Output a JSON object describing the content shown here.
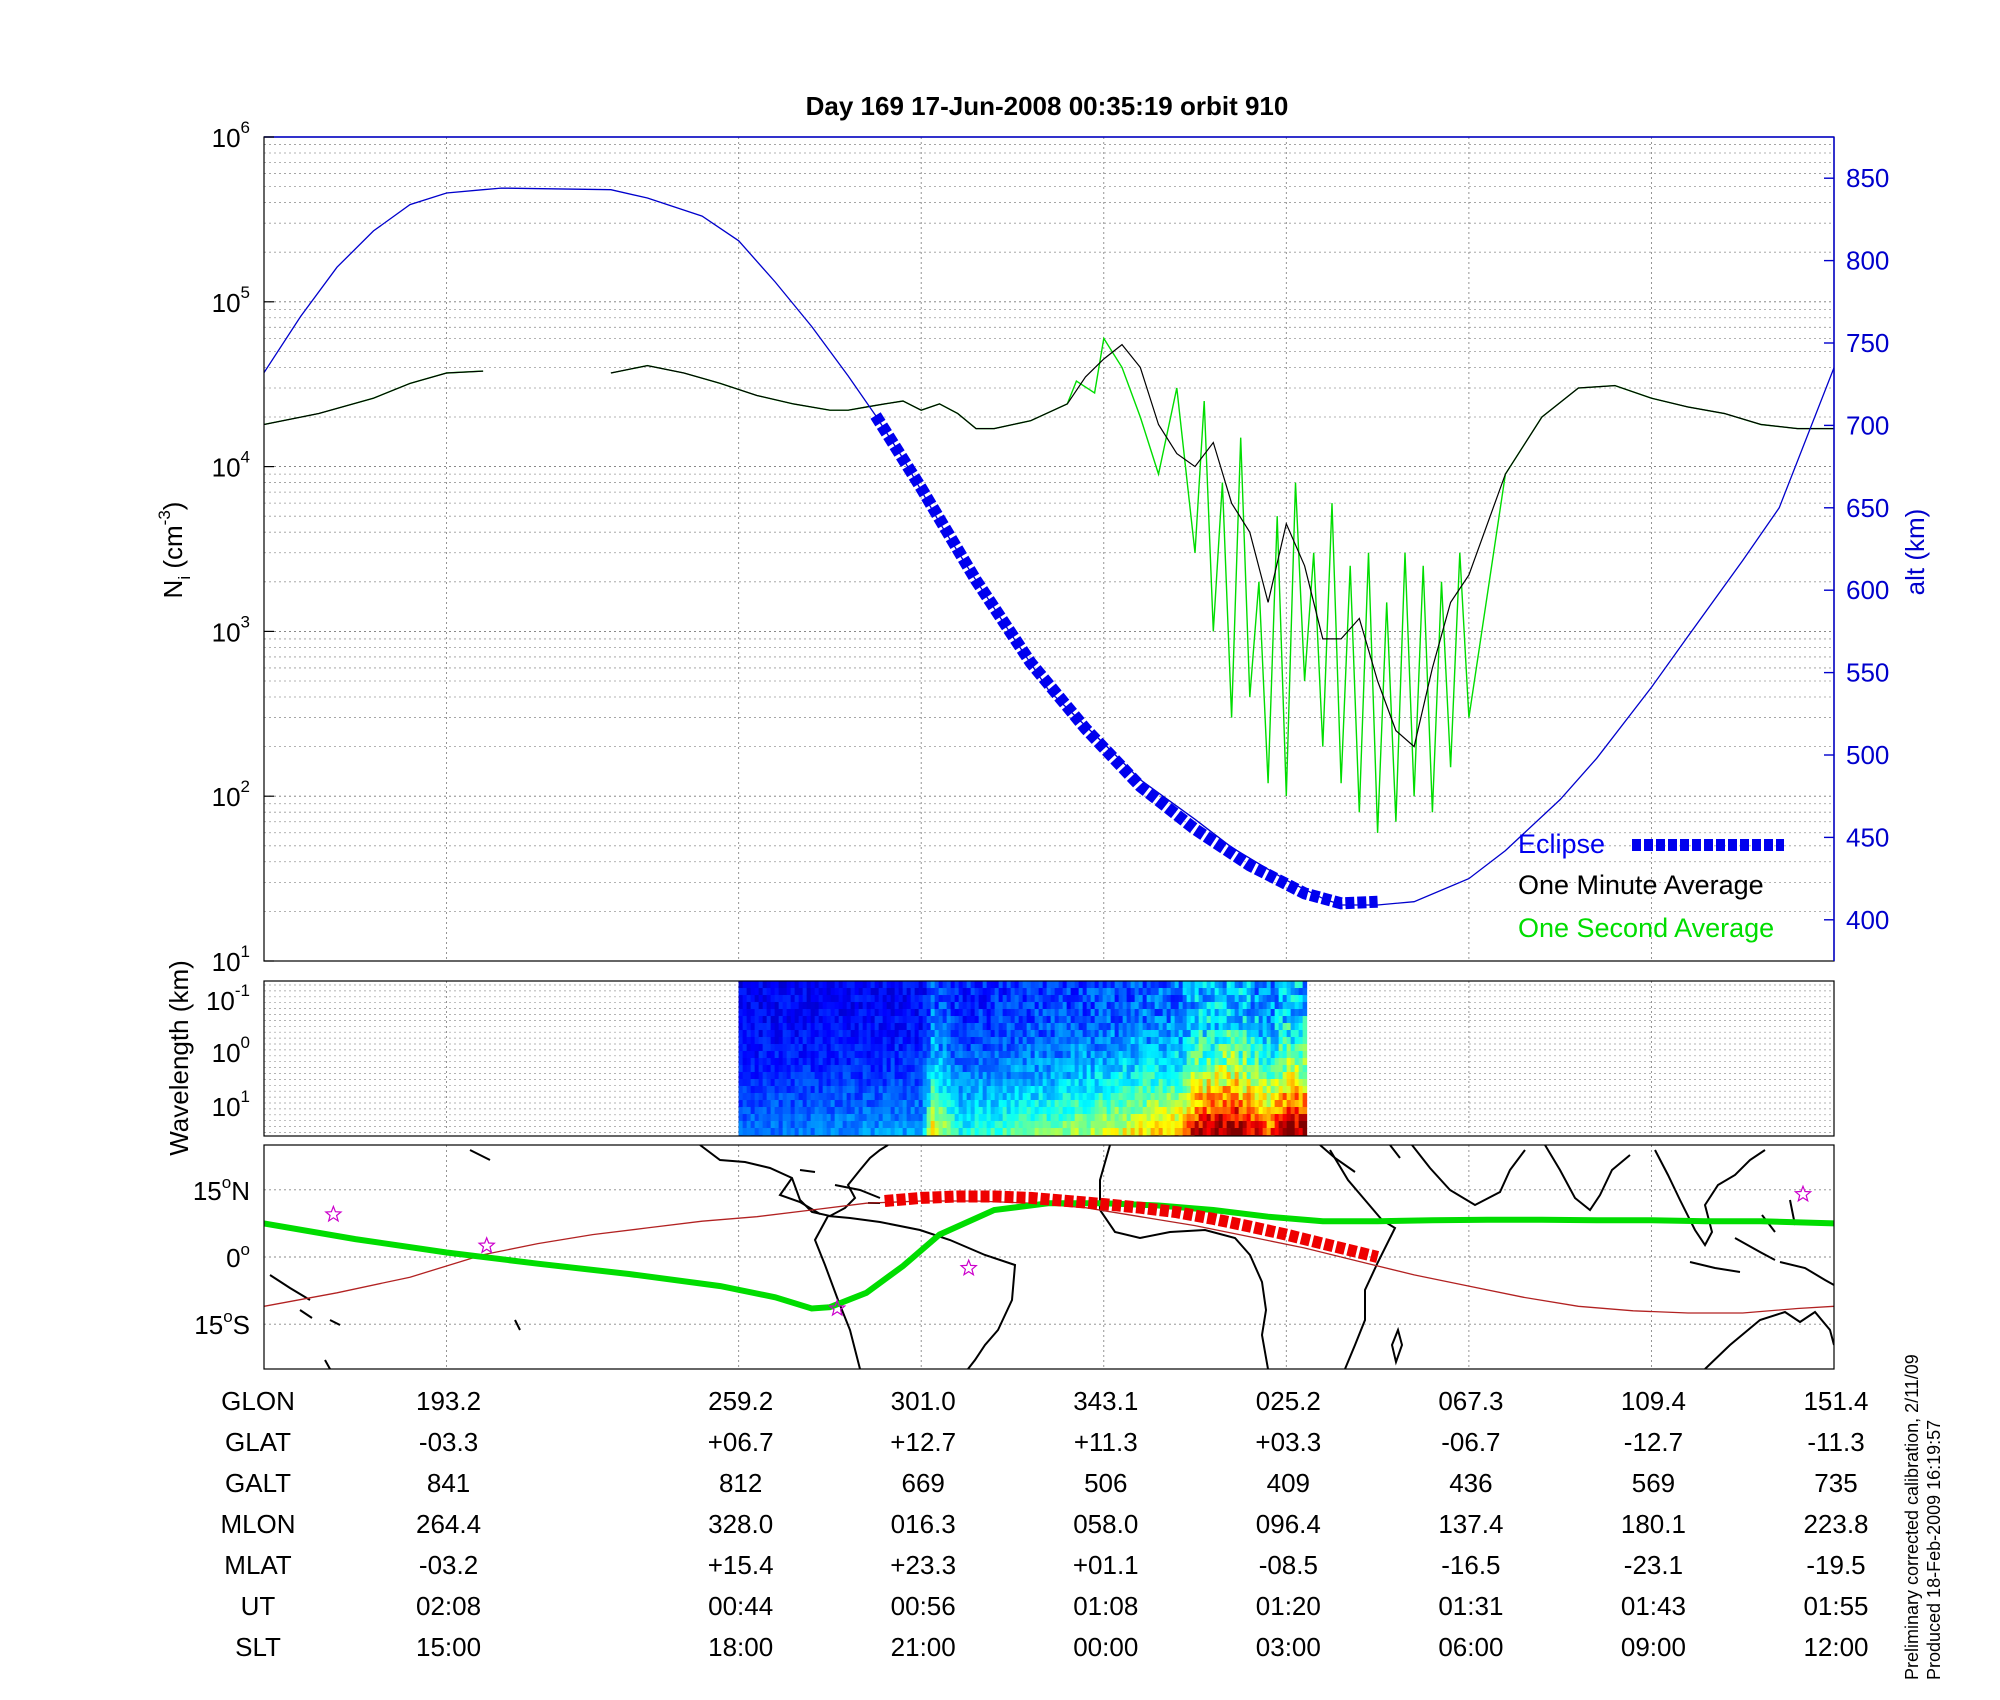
{
  "title": "Day 169  17-Jun-2008 00:35:19   orbit 910",
  "colors": {
    "altitude": "#0000cc",
    "eclipse": "#0000ee",
    "one_minute": "#000000",
    "one_second": "#00dd00",
    "track_eclipse": "#ee0000",
    "track_line": "#b22222",
    "magnetic_equator": "#00dd00",
    "stars": "#cc00cc"
  },
  "chart_data": [
    {
      "type": "line",
      "panel": "ion density",
      "ylabel_parts": [
        "N",
        "i",
        " (cm",
        "-3",
        ")"
      ],
      "yscale": "log",
      "ylim": [
        10,
        1000000
      ],
      "yticks": [
        {
          "base": "10",
          "exp": "6"
        },
        {
          "base": "10",
          "exp": "5"
        },
        {
          "base": "10",
          "exp": "4"
        },
        {
          "base": "10",
          "exp": "3"
        },
        {
          "base": "10",
          "exp": "2"
        },
        {
          "base": "10",
          "exp": "1"
        }
      ],
      "right_axis": {
        "label": "alt (km)",
        "ylim": [
          375,
          875
        ],
        "ticks": [
          "850",
          "800",
          "750",
          "700",
          "650",
          "600",
          "550",
          "500",
          "450",
          "400"
        ]
      },
      "x_axis": {
        "unit": "minutes",
        "range": [
          0,
          86
        ],
        "grid_at": [
          10,
          26,
          36,
          46,
          56,
          66,
          76,
          86
        ]
      },
      "grid": true,
      "legend": {
        "position": "bottom-right",
        "entries": [
          "Eclipse",
          "One Minute Average",
          "One Second Average"
        ]
      },
      "series": [
        {
          "name": "alt (km)",
          "axis": "right",
          "x": [
            0,
            2,
            4,
            6,
            8,
            10,
            12,
            13,
            19,
            21,
            24,
            26,
            28,
            30,
            32,
            33.5,
            35,
            37,
            39,
            41,
            43,
            46,
            48,
            51,
            53,
            56,
            58,
            59,
            61,
            63,
            66,
            68,
            71,
            73,
            76,
            78,
            81,
            83,
            86
          ],
          "y": [
            732,
            766,
            796,
            818,
            834,
            841,
            843,
            844,
            843,
            838,
            827,
            812,
            787,
            760,
            730,
            706,
            680,
            641,
            606,
            572,
            539,
            507,
            485,
            461,
            444,
            424,
            413,
            409,
            409,
            411,
            425,
            442,
            473,
            498,
            541,
            572,
            618,
            650,
            735
          ]
        },
        {
          "name": "Eclipse",
          "axis": "right",
          "x": [
            33.5,
            36,
            39,
            42,
            45,
            48,
            51,
            54,
            57,
            59,
            61
          ],
          "y": [
            706,
            662,
            606,
            556,
            516,
            481,
            455,
            433,
            416,
            410,
            411
          ]
        },
        {
          "name": "One Minute Average",
          "x": [
            0,
            3,
            6,
            8,
            10,
            12,
            13,
            19,
            21,
            23,
            25,
            27,
            29,
            31,
            32,
            33,
            34,
            35,
            36,
            37,
            38,
            39,
            40,
            42,
            44,
            45,
            46,
            47,
            48,
            49,
            50,
            51,
            52,
            53,
            54,
            55,
            56,
            57,
            58,
            59,
            60,
            61,
            62,
            63,
            64,
            65,
            66,
            68,
            70,
            72,
            74,
            76,
            78,
            80,
            82,
            84,
            86
          ],
          "y": [
            18000,
            21000,
            26000,
            32000,
            37000,
            38000,
            null,
            37000,
            41000,
            37000,
            32000,
            27000,
            24000,
            22000,
            22000,
            23000,
            24000,
            25000,
            22000,
            24000,
            21000,
            17000,
            17000,
            19000,
            24000,
            35000,
            45000,
            55000,
            40000,
            18000,
            12000,
            10000,
            14000,
            6000,
            4000,
            1500,
            4500,
            2500,
            900,
            900,
            1200,
            500,
            250,
            200,
            600,
            1500,
            2200,
            9000,
            20000,
            30000,
            31000,
            26000,
            23000,
            21000,
            18000,
            17000,
            17000
          ]
        },
        {
          "name": "One Second Average",
          "x": [
            0,
            3,
            6,
            8,
            10,
            12,
            13,
            19,
            21,
            23,
            25,
            27,
            29,
            31,
            32,
            33,
            34,
            35,
            36,
            37,
            38,
            39,
            40,
            42,
            44,
            44.5,
            45.5,
            46,
            47,
            48,
            49,
            50,
            51,
            51.5,
            52,
            52.5,
            53,
            53.5,
            54,
            54.5,
            55,
            55.5,
            56,
            56.5,
            57,
            57.5,
            58,
            58.5,
            59,
            59.5,
            60,
            60.5,
            61,
            61.5,
            62,
            62.5,
            63,
            63.5,
            64,
            64.5,
            65,
            65.5,
            66,
            68,
            70,
            72,
            74,
            76,
            78,
            80,
            82,
            84,
            86
          ],
          "y": [
            18000,
            21000,
            26000,
            32000,
            37000,
            38000,
            null,
            37000,
            41000,
            37000,
            32000,
            27000,
            24000,
            22000,
            22000,
            23000,
            24000,
            25000,
            22000,
            24000,
            21000,
            17000,
            17000,
            19000,
            24000,
            33000,
            28000,
            60000,
            40000,
            20000,
            9000,
            30000,
            3000,
            25000,
            1000,
            8000,
            300,
            15000,
            400,
            2000,
            120,
            5000,
            100,
            8000,
            500,
            3000,
            200,
            6000,
            120,
            2500,
            80,
            3000,
            60,
            1500,
            70,
            3000,
            100,
            2500,
            80,
            2000,
            150,
            3000,
            300,
            9000,
            20000,
            30000,
            31000,
            26000,
            23000,
            21000,
            18000,
            17000,
            17000
          ]
        }
      ]
    },
    {
      "type": "heatmap",
      "panel": "spectrogram",
      "ylabel": "Wavelength (km)",
      "yticks": [
        {
          "base": "10",
          "exp": "-1"
        },
        {
          "base": "10",
          "exp": "0"
        },
        {
          "base": "10",
          "exp": "1"
        }
      ],
      "x_range": [
        26,
        57
      ],
      "colormap": "jet",
      "intensity_profile": [
        {
          "x": 26,
          "v": 0.15
        },
        {
          "x": 36,
          "v": 0.2
        },
        {
          "x": 36.5,
          "v": 0.55
        },
        {
          "x": 38,
          "v": 0.3
        },
        {
          "x": 45,
          "v": 0.45
        },
        {
          "x": 50,
          "v": 0.6
        },
        {
          "x": 51,
          "v": 0.85
        },
        {
          "x": 53,
          "v": 0.95
        },
        {
          "x": 55,
          "v": 0.7
        },
        {
          "x": 56,
          "v": 0.95
        },
        {
          "x": 57,
          "v": 0.9
        }
      ]
    },
    {
      "type": "line",
      "panel": "map",
      "yticks": [
        {
          "value": "15",
          "deg": "o",
          "hem": "N"
        },
        {
          "value": "0",
          "deg": "o",
          "hem": ""
        },
        {
          "value": "15",
          "deg": "o",
          "hem": "S"
        }
      ],
      "ylim": [
        -25,
        25
      ],
      "series": [
        {
          "name": "magnetic equator",
          "x": [
            0,
            5,
            10,
            15,
            20,
            25,
            28,
            30,
            31,
            33,
            35,
            37,
            40,
            43,
            46,
            49,
            52,
            55,
            58,
            61,
            64,
            67,
            70,
            73,
            76,
            79,
            82,
            86
          ],
          "y": [
            7.5,
            4,
            1,
            -1.5,
            -3.8,
            -6.5,
            -9,
            -11.5,
            -11.2,
            -8,
            -2,
            5,
            10.5,
            12,
            12,
            11.5,
            10.5,
            9,
            8,
            8,
            8.2,
            8.3,
            8.3,
            8.2,
            8.2,
            8,
            8,
            7.5
          ]
        },
        {
          "name": "orbit track",
          "x": [
            0,
            4,
            8,
            12,
            15,
            18,
            21,
            24,
            27,
            30,
            33,
            36,
            39,
            42,
            45,
            48,
            51,
            54,
            57,
            60,
            63,
            66,
            69,
            72,
            75,
            78,
            81,
            84,
            86
          ],
          "y": [
            -11,
            -8,
            -4.5,
            0.5,
            3,
            5,
            6.5,
            8,
            9,
            10.5,
            12,
            12.5,
            12.5,
            12,
            11,
            9,
            7,
            4.5,
            2,
            -1,
            -4,
            -6.5,
            -9,
            -11,
            -12,
            -12.5,
            -12.5,
            -11.5,
            -11
          ]
        },
        {
          "name": "eclipse track",
          "x": [
            34,
            36,
            38,
            40,
            42,
            44,
            46,
            48,
            50,
            52,
            54,
            56,
            58,
            60,
            61
          ],
          "y": [
            12.5,
            13.2,
            13.5,
            13.5,
            13.2,
            12.5,
            11.8,
            11,
            10,
            8.5,
            6.8,
            5,
            3,
            1,
            0
          ]
        }
      ],
      "stars": [
        {
          "x": 3.8,
          "y": 9.5
        },
        {
          "x": 12.2,
          "y": 2.5
        },
        {
          "x": 31.4,
          "y": -11.5
        },
        {
          "x": 38.6,
          "y": -2.5
        },
        {
          "x": 84.3,
          "y": 14
        }
      ]
    },
    {
      "type": "table",
      "panel": "orbit parameters",
      "row_labels": [
        "GLON",
        "GLAT",
        "GALT",
        "MLON",
        "MLAT",
        "UT",
        "SLT"
      ],
      "columns": [
        [
          "193.2",
          "-03.3",
          "841",
          "264.4",
          "-03.2",
          "02:08",
          "15:00"
        ],
        [
          "259.2",
          "+06.7",
          "812",
          "328.0",
          "+15.4",
          "00:44",
          "18:00"
        ],
        [
          "301.0",
          "+12.7",
          "669",
          "016.3",
          "+23.3",
          "00:56",
          "21:00"
        ],
        [
          "343.1",
          "+11.3",
          "506",
          "058.0",
          "+01.1",
          "01:08",
          "00:00"
        ],
        [
          "025.2",
          "+03.3",
          "409",
          "096.4",
          "-08.5",
          "01:20",
          "03:00"
        ],
        [
          "067.3",
          "-06.7",
          "436",
          "137.4",
          "-16.5",
          "01:31",
          "06:00"
        ],
        [
          "109.4",
          "-12.7",
          "569",
          "180.1",
          "-23.1",
          "01:43",
          "09:00"
        ],
        [
          "151.4",
          "-11.3",
          "735",
          "223.8",
          "-19.5",
          "01:55",
          "12:00"
        ]
      ]
    }
  ],
  "footnote": {
    "line1": "Preliminary corrected calibration, 2/11/09",
    "line2": "Produced 18-Feb-2009 16:19:57"
  }
}
